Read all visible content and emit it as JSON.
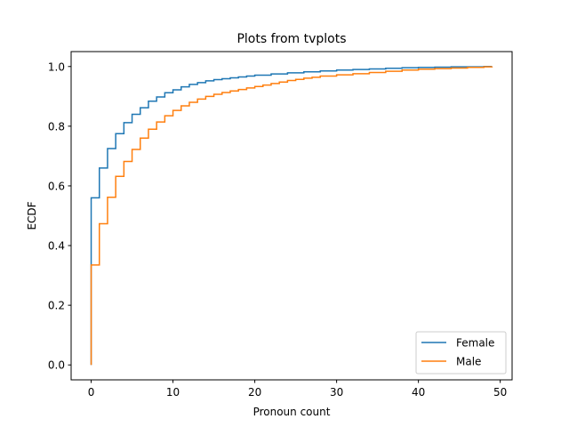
{
  "chart_data": {
    "type": "line",
    "title": "Plots from tvplots",
    "xlabel": "Pronoun count",
    "ylabel": "ECDF",
    "xlim": [
      -2.45,
      51.45
    ],
    "ylim": [
      -0.05,
      1.05
    ],
    "xticks": [
      0,
      10,
      20,
      30,
      40,
      50
    ],
    "yticks": [
      0.0,
      0.2,
      0.4,
      0.6,
      0.8,
      1.0
    ],
    "xtick_labels": [
      "0",
      "10",
      "20",
      "30",
      "40",
      "50"
    ],
    "ytick_labels": [
      "0.0",
      "0.2",
      "0.4",
      "0.6",
      "0.8",
      "1.0"
    ],
    "step": "post",
    "grid": false,
    "legend_position": "lower-right",
    "series": [
      {
        "name": "Female",
        "color": "#1f77b4",
        "x": [
          0,
          0,
          1,
          2,
          3,
          4,
          5,
          6,
          7,
          8,
          9,
          10,
          11,
          12,
          13,
          14,
          15,
          16,
          17,
          18,
          19,
          20,
          22,
          24,
          26,
          28,
          30,
          32,
          34,
          36,
          38,
          40,
          42,
          44,
          46,
          48,
          49
        ],
        "y": [
          0.0,
          0.56,
          0.66,
          0.725,
          0.775,
          0.812,
          0.84,
          0.862,
          0.884,
          0.898,
          0.912,
          0.922,
          0.932,
          0.94,
          0.946,
          0.952,
          0.956,
          0.959,
          0.962,
          0.965,
          0.968,
          0.971,
          0.975,
          0.979,
          0.982,
          0.985,
          0.988,
          0.99,
          0.992,
          0.994,
          0.996,
          0.997,
          0.998,
          0.999,
          0.999,
          1.0,
          1.0
        ]
      },
      {
        "name": "Male",
        "color": "#ff7f0e",
        "x": [
          0,
          0,
          1,
          2,
          3,
          4,
          5,
          6,
          7,
          8,
          9,
          10,
          11,
          12,
          13,
          14,
          15,
          16,
          17,
          18,
          19,
          20,
          21,
          22,
          23,
          24,
          25,
          26,
          27,
          28,
          30,
          32,
          34,
          36,
          38,
          40,
          42,
          44,
          46,
          48,
          49
        ],
        "y": [
          0.0,
          0.335,
          0.473,
          0.562,
          0.632,
          0.682,
          0.722,
          0.76,
          0.79,
          0.814,
          0.835,
          0.853,
          0.868,
          0.88,
          0.891,
          0.9,
          0.907,
          0.913,
          0.918,
          0.923,
          0.928,
          0.933,
          0.938,
          0.943,
          0.948,
          0.953,
          0.957,
          0.961,
          0.964,
          0.968,
          0.972,
          0.976,
          0.98,
          0.984,
          0.988,
          0.991,
          0.993,
          0.995,
          0.997,
          0.999,
          1.0
        ]
      }
    ]
  }
}
